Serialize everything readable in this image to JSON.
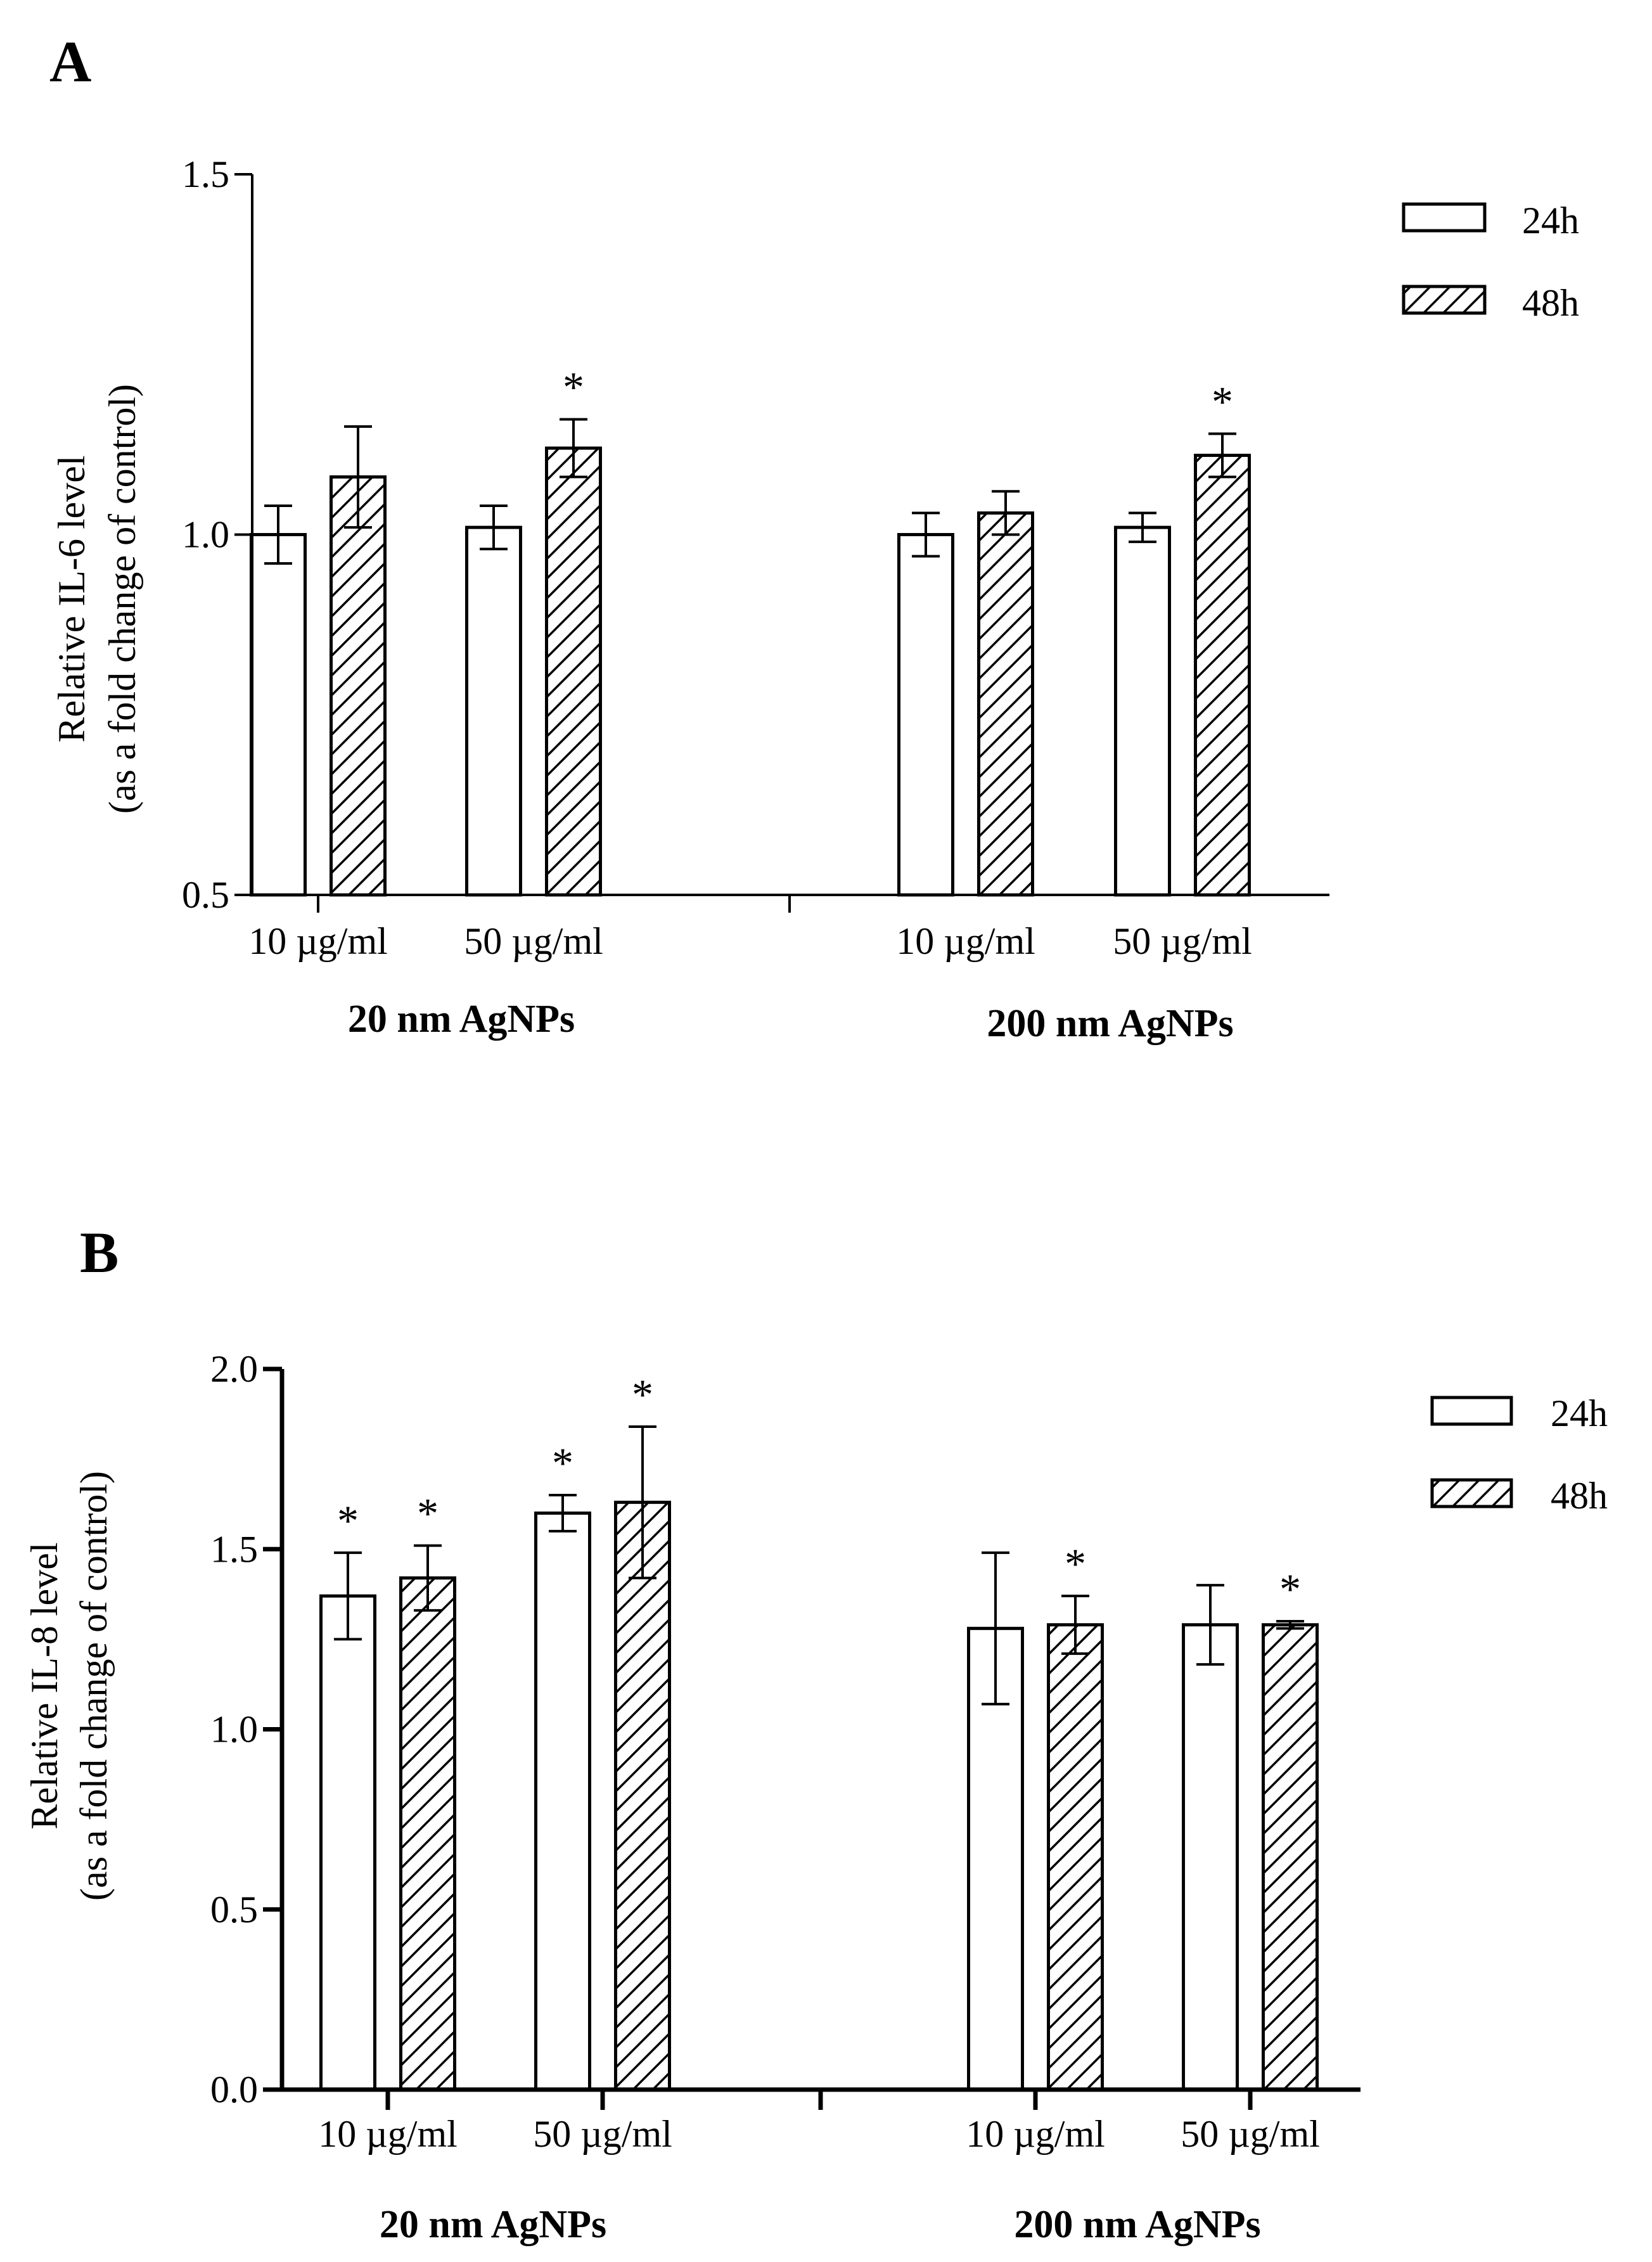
{
  "figure": {
    "panels": [
      "A",
      "B"
    ]
  },
  "legend": {
    "series": [
      {
        "name": "24h",
        "pattern": "open"
      },
      {
        "name": "48h",
        "pattern": "hatched"
      }
    ]
  },
  "colors": {
    "ink": "#000000",
    "fill_open": "#ffffff"
  },
  "chart_data": [
    {
      "panel": "A",
      "type": "bar",
      "title": "",
      "ylabel": [
        "Relative IL-6 level",
        "(as a fold change of control)"
      ],
      "ylim": [
        0.5,
        1.5
      ],
      "yticks": [
        0.5,
        1.0,
        1.5
      ],
      "ytick_labels": [
        "0.5",
        "1.0",
        "1.5"
      ],
      "groups": [
        "20 nm AgNPs",
        "200 nm AgNPs"
      ],
      "categories": [
        "10 µg/ml",
        "50 µg/ml",
        "10 µg/ml",
        "50 µg/ml"
      ],
      "category_groups": [
        0,
        0,
        1,
        1
      ],
      "series": [
        {
          "name": "24h",
          "values": [
            1.0,
            1.01,
            1.0,
            1.01
          ],
          "errors": [
            0.04,
            0.03,
            0.03,
            0.02
          ],
          "significant": [
            false,
            false,
            false,
            false
          ]
        },
        {
          "name": "48h",
          "values": [
            1.08,
            1.12,
            1.03,
            1.11
          ],
          "errors": [
            0.07,
            0.04,
            0.03,
            0.03
          ],
          "significant": [
            false,
            true,
            false,
            true
          ]
        }
      ],
      "significance_marker": "*",
      "legend_position": "top-right"
    },
    {
      "panel": "B",
      "type": "bar",
      "title": "",
      "ylabel": [
        "Relative IL-8 level",
        "(as a fold change of control)"
      ],
      "ylim": [
        0.0,
        2.0
      ],
      "yticks": [
        0.0,
        0.5,
        1.0,
        1.5,
        2.0
      ],
      "ytick_labels": [
        "0.0",
        "0.5",
        "1.0",
        "1.5",
        "2.0"
      ],
      "groups": [
        "20 nm AgNPs",
        "200 nm AgNPs"
      ],
      "categories": [
        "10 µg/ml",
        "50 µg/ml",
        "10 µg/ml",
        "50 µg/ml"
      ],
      "category_groups": [
        0,
        0,
        1,
        1
      ],
      "series": [
        {
          "name": "24h",
          "values": [
            1.37,
            1.6,
            1.28,
            1.29
          ],
          "errors": [
            0.12,
            0.05,
            0.21,
            0.11
          ],
          "significant": [
            true,
            true,
            false,
            false
          ]
        },
        {
          "name": "48h",
          "values": [
            1.42,
            1.63,
            1.29,
            1.29
          ],
          "errors": [
            0.09,
            0.21,
            0.08,
            0.01
          ],
          "significant": [
            true,
            true,
            true,
            true
          ]
        }
      ],
      "significance_marker": "*",
      "legend_position": "top-right"
    }
  ]
}
